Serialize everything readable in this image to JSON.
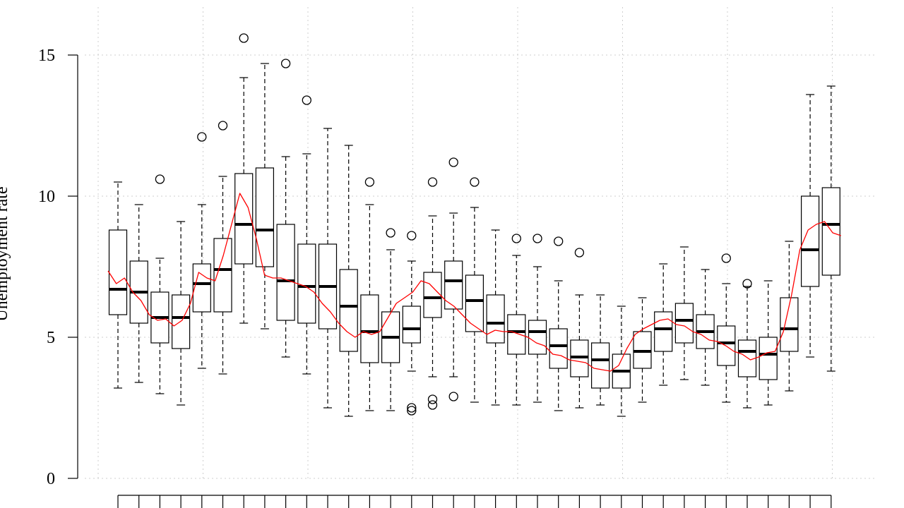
{
  "chart_data": {
    "type": "box",
    "title": "",
    "xlabel": "",
    "ylabel": "Unemployment rate",
    "ylim": [
      0,
      15
    ],
    "yticks": [
      0,
      5,
      10,
      15
    ],
    "ytick_labels": [
      "0",
      "5",
      "10",
      "15"
    ],
    "grid": true,
    "trend_color": "#ff0000",
    "box_color": "#000000",
    "grid_color": "#cfcfcf",
    "boxes": [
      {
        "min": 3.2,
        "q1": 5.8,
        "median": 6.7,
        "q3": 8.8,
        "max": 10.5,
        "outliers": []
      },
      {
        "min": 3.4,
        "q1": 5.5,
        "median": 6.6,
        "q3": 7.7,
        "max": 9.7,
        "outliers": []
      },
      {
        "min": 3.0,
        "q1": 4.8,
        "median": 5.7,
        "q3": 6.6,
        "max": 7.8,
        "outliers": [
          10.6
        ]
      },
      {
        "min": 2.6,
        "q1": 4.6,
        "median": 5.7,
        "q3": 6.5,
        "max": 9.1,
        "outliers": []
      },
      {
        "min": 3.9,
        "q1": 5.9,
        "median": 6.9,
        "q3": 7.6,
        "max": 9.7,
        "outliers": [
          12.1
        ]
      },
      {
        "min": 3.7,
        "q1": 5.9,
        "median": 7.4,
        "q3": 8.5,
        "max": 10.7,
        "outliers": [
          12.5
        ]
      },
      {
        "min": 5.5,
        "q1": 7.6,
        "median": 9.0,
        "q3": 10.8,
        "max": 14.2,
        "outliers": [
          15.6
        ]
      },
      {
        "min": 5.3,
        "q1": 7.5,
        "median": 8.8,
        "q3": 11.0,
        "max": 14.7,
        "outliers": []
      },
      {
        "min": 4.3,
        "q1": 5.6,
        "median": 7.0,
        "q3": 9.0,
        "max": 11.4,
        "outliers": [
          14.7
        ]
      },
      {
        "min": 3.7,
        "q1": 5.5,
        "median": 6.8,
        "q3": 8.3,
        "max": 11.5,
        "outliers": [
          13.4
        ]
      },
      {
        "min": 2.5,
        "q1": 5.3,
        "median": 6.8,
        "q3": 8.3,
        "max": 12.4,
        "outliers": []
      },
      {
        "min": 2.2,
        "q1": 4.5,
        "median": 6.1,
        "q3": 7.4,
        "max": 11.8,
        "outliers": []
      },
      {
        "min": 2.4,
        "q1": 4.1,
        "median": 5.2,
        "q3": 6.5,
        "max": 9.7,
        "outliers": [
          10.5
        ]
      },
      {
        "min": 2.4,
        "q1": 4.1,
        "median": 5.0,
        "q3": 5.9,
        "max": 8.1,
        "outliers": [
          8.7
        ]
      },
      {
        "min": 3.8,
        "q1": 4.8,
        "median": 5.3,
        "q3": 6.1,
        "max": 7.7,
        "outliers": [
          8.6,
          2.5,
          2.4
        ]
      },
      {
        "min": 3.6,
        "q1": 5.7,
        "median": 6.4,
        "q3": 7.3,
        "max": 9.3,
        "outliers": [
          10.5,
          2.8,
          2.6
        ]
      },
      {
        "min": 3.6,
        "q1": 6.0,
        "median": 7.0,
        "q3": 7.7,
        "max": 9.4,
        "outliers": [
          11.2,
          2.9
        ]
      },
      {
        "min": 2.7,
        "q1": 5.2,
        "median": 6.3,
        "q3": 7.2,
        "max": 9.6,
        "outliers": [
          10.5
        ]
      },
      {
        "min": 2.6,
        "q1": 4.8,
        "median": 5.5,
        "q3": 6.5,
        "max": 8.8,
        "outliers": []
      },
      {
        "min": 2.6,
        "q1": 4.4,
        "median": 5.2,
        "q3": 5.8,
        "max": 7.9,
        "outliers": [
          8.5
        ]
      },
      {
        "min": 2.7,
        "q1": 4.4,
        "median": 5.2,
        "q3": 5.6,
        "max": 7.5,
        "outliers": [
          8.5
        ]
      },
      {
        "min": 2.4,
        "q1": 3.9,
        "median": 4.7,
        "q3": 5.3,
        "max": 7.0,
        "outliers": [
          8.4
        ]
      },
      {
        "min": 2.5,
        "q1": 3.6,
        "median": 4.3,
        "q3": 4.9,
        "max": 6.5,
        "outliers": [
          8.0
        ]
      },
      {
        "min": 2.6,
        "q1": 3.2,
        "median": 4.2,
        "q3": 4.8,
        "max": 6.5,
        "outliers": []
      },
      {
        "min": 2.2,
        "q1": 3.2,
        "median": 3.8,
        "q3": 4.4,
        "max": 6.1,
        "outliers": []
      },
      {
        "min": 2.7,
        "q1": 3.9,
        "median": 4.5,
        "q3": 5.2,
        "max": 6.4,
        "outliers": []
      },
      {
        "min": 3.3,
        "q1": 4.5,
        "median": 5.3,
        "q3": 5.9,
        "max": 7.6,
        "outliers": []
      },
      {
        "min": 3.5,
        "q1": 4.8,
        "median": 5.6,
        "q3": 6.2,
        "max": 8.2,
        "outliers": []
      },
      {
        "min": 3.3,
        "q1": 4.6,
        "median": 5.2,
        "q3": 5.8,
        "max": 7.4,
        "outliers": []
      },
      {
        "min": 2.7,
        "q1": 4.0,
        "median": 4.8,
        "q3": 5.4,
        "max": 6.9,
        "outliers": [
          7.8
        ]
      },
      {
        "min": 2.5,
        "q1": 3.6,
        "median": 4.5,
        "q3": 4.9,
        "max": 6.8,
        "outliers": [
          6.9
        ]
      },
      {
        "min": 2.6,
        "q1": 3.5,
        "median": 4.4,
        "q3": 5.0,
        "max": 7.0,
        "outliers": []
      },
      {
        "min": 3.1,
        "q1": 4.5,
        "median": 5.3,
        "q3": 6.4,
        "max": 8.4,
        "outliers": []
      },
      {
        "min": 4.3,
        "q1": 6.8,
        "median": 8.1,
        "q3": 10.0,
        "max": 13.6,
        "outliers": []
      },
      {
        "min": 3.8,
        "q1": 7.2,
        "median": 9.0,
        "q3": 10.3,
        "max": 13.9,
        "outliers": []
      }
    ],
    "trend": [
      7.35,
      6.9,
      7.1,
      6.6,
      6.3,
      5.8,
      5.6,
      5.65,
      5.4,
      5.6,
      6.2,
      7.3,
      7.1,
      7.0,
      7.9,
      9.0,
      10.1,
      9.6,
      8.5,
      7.2,
      7.1,
      7.1,
      7.0,
      6.9,
      6.8,
      6.6,
      6.2,
      5.9,
      5.5,
      5.2,
      5.0,
      5.2,
      5.1,
      5.2,
      5.7,
      6.2,
      6.4,
      6.6,
      7.0,
      6.9,
      6.6,
      6.3,
      6.1,
      5.8,
      5.5,
      5.3,
      5.1,
      5.25,
      5.2,
      5.2,
      5.1,
      5.0,
      4.8,
      4.7,
      4.4,
      4.35,
      4.2,
      4.15,
      4.1,
      3.9,
      3.85,
      3.8,
      4.0,
      4.6,
      5.1,
      5.3,
      5.45,
      5.6,
      5.65,
      5.45,
      5.4,
      5.2,
      5.1,
      4.9,
      4.85,
      4.7,
      4.5,
      4.4,
      4.2,
      4.3,
      4.45,
      4.5,
      5.2,
      6.5,
      8.1,
      8.8,
      9.0,
      9.1,
      8.7,
      8.6
    ]
  }
}
